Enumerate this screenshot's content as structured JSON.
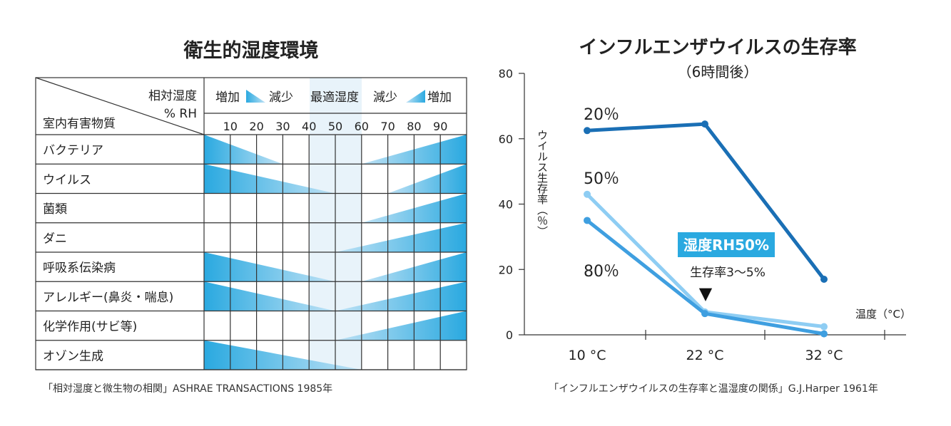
{
  "colors": {
    "accent": "#2aa9e0",
    "band": "#e8f3fa",
    "dark_series": "#1a6fb5",
    "mid_series": "#3f9fe0",
    "light_series": "#8ecdf3",
    "grid": "#333333"
  },
  "left": {
    "title": "衛生的湿度環境",
    "header": {
      "axis_label_1": "相対湿度",
      "axis_label_2": "% RH",
      "row_label": "室内有害物質",
      "legend_left_1": "増加",
      "legend_left_2": "減少",
      "legend_center": "最適湿度",
      "legend_right_1": "減少",
      "legend_right_2": "増加",
      "ticks": [
        "10",
        "20",
        "30",
        "40",
        "50",
        "60",
        "70",
        "80",
        "90"
      ]
    },
    "rows": [
      {
        "label": "バクテリア",
        "left_span": [
          0,
          30
        ],
        "right_span": [
          60,
          100
        ]
      },
      {
        "label": "ウイルス",
        "left_span": [
          0,
          50
        ],
        "right_span": [
          70,
          100
        ]
      },
      {
        "label": "菌類",
        "left_span": null,
        "right_span": [
          60,
          100
        ]
      },
      {
        "label": "ダニ",
        "left_span": null,
        "right_span": [
          50,
          100
        ]
      },
      {
        "label": "呼吸系伝染病",
        "left_span": [
          0,
          50
        ],
        "right_span": [
          60,
          100
        ]
      },
      {
        "label": "アレルギー(鼻炎・喘息)",
        "left_span": [
          0,
          50
        ],
        "right_span": [
          50,
          100
        ]
      },
      {
        "label": "化学作用(サビ等)",
        "left_span": null,
        "right_span": [
          50,
          100
        ]
      },
      {
        "label": "オゾン生成",
        "left_span": [
          0,
          60
        ],
        "right_span": null
      }
    ],
    "optimal_range": [
      40,
      60
    ],
    "source": "「相対湿度と微生物の相関」ASHRAE TRANSACTIONS 1985年"
  },
  "chart_data": {
    "type": "line",
    "title": "インフルエンザウイルスの生存率",
    "subtitle": "（6時間後）",
    "ylabel": "ウイルス生存率（％）",
    "xlabel": "温度（°C）",
    "categories": [
      "10 °C",
      "22 °C",
      "32 °C"
    ],
    "y_ticks": [
      "0",
      "20",
      "40",
      "60",
      "80"
    ],
    "ylim": [
      0,
      80
    ],
    "series": [
      {
        "name": "20％",
        "values": [
          62.5,
          64.5,
          17
        ]
      },
      {
        "name": "50％",
        "values": [
          43,
          7,
          2.5
        ]
      },
      {
        "name": "80％",
        "values": [
          35,
          6.5,
          0.3
        ]
      }
    ],
    "annotation_box": "湿度RH50%",
    "annotation_text": "生存率3〜5%",
    "annotation_marker": "▼",
    "source": "「インフルエンザウイルスの生存率と温湿度の関係」G.J.Harper 1961年"
  }
}
